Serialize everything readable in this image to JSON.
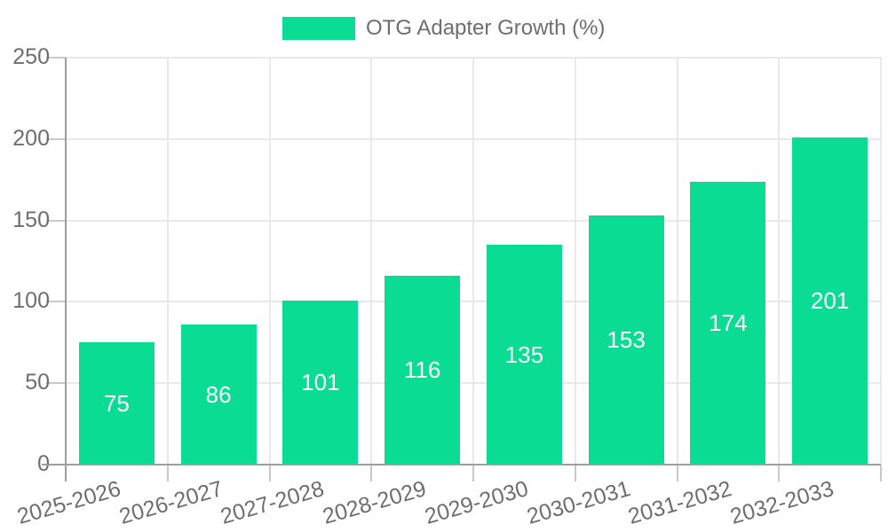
{
  "legend": {
    "label": "OTG Adapter Growth (%)"
  },
  "chart_data": {
    "type": "bar",
    "title": "OTG Adapter Growth (%)",
    "categories": [
      "2025-2026",
      "2026-2027",
      "2027-2028",
      "2028-2029",
      "2029-2030",
      "2030-2031",
      "2031-2032",
      "2032-2033"
    ],
    "values": [
      75,
      86,
      101,
      116,
      135,
      153,
      174,
      201
    ],
    "value_labels": [
      "75",
      "86",
      "101",
      "116",
      "135",
      "153",
      "174",
      "201"
    ],
    "xlabel": "",
    "ylabel": "",
    "ylim": [
      0,
      250
    ],
    "yticks": [
      0,
      50,
      100,
      150,
      200,
      250
    ],
    "grid": true,
    "legend_position": "top-center",
    "colors": {
      "bar": "#0add93",
      "value_label": "#ffffff",
      "axis_text": "#6e6e6e",
      "axis_line": "#9e9e9e",
      "grid_line": "#e9e9e9",
      "tick_line": "#c9c9c9",
      "background": "#ffffff"
    }
  }
}
